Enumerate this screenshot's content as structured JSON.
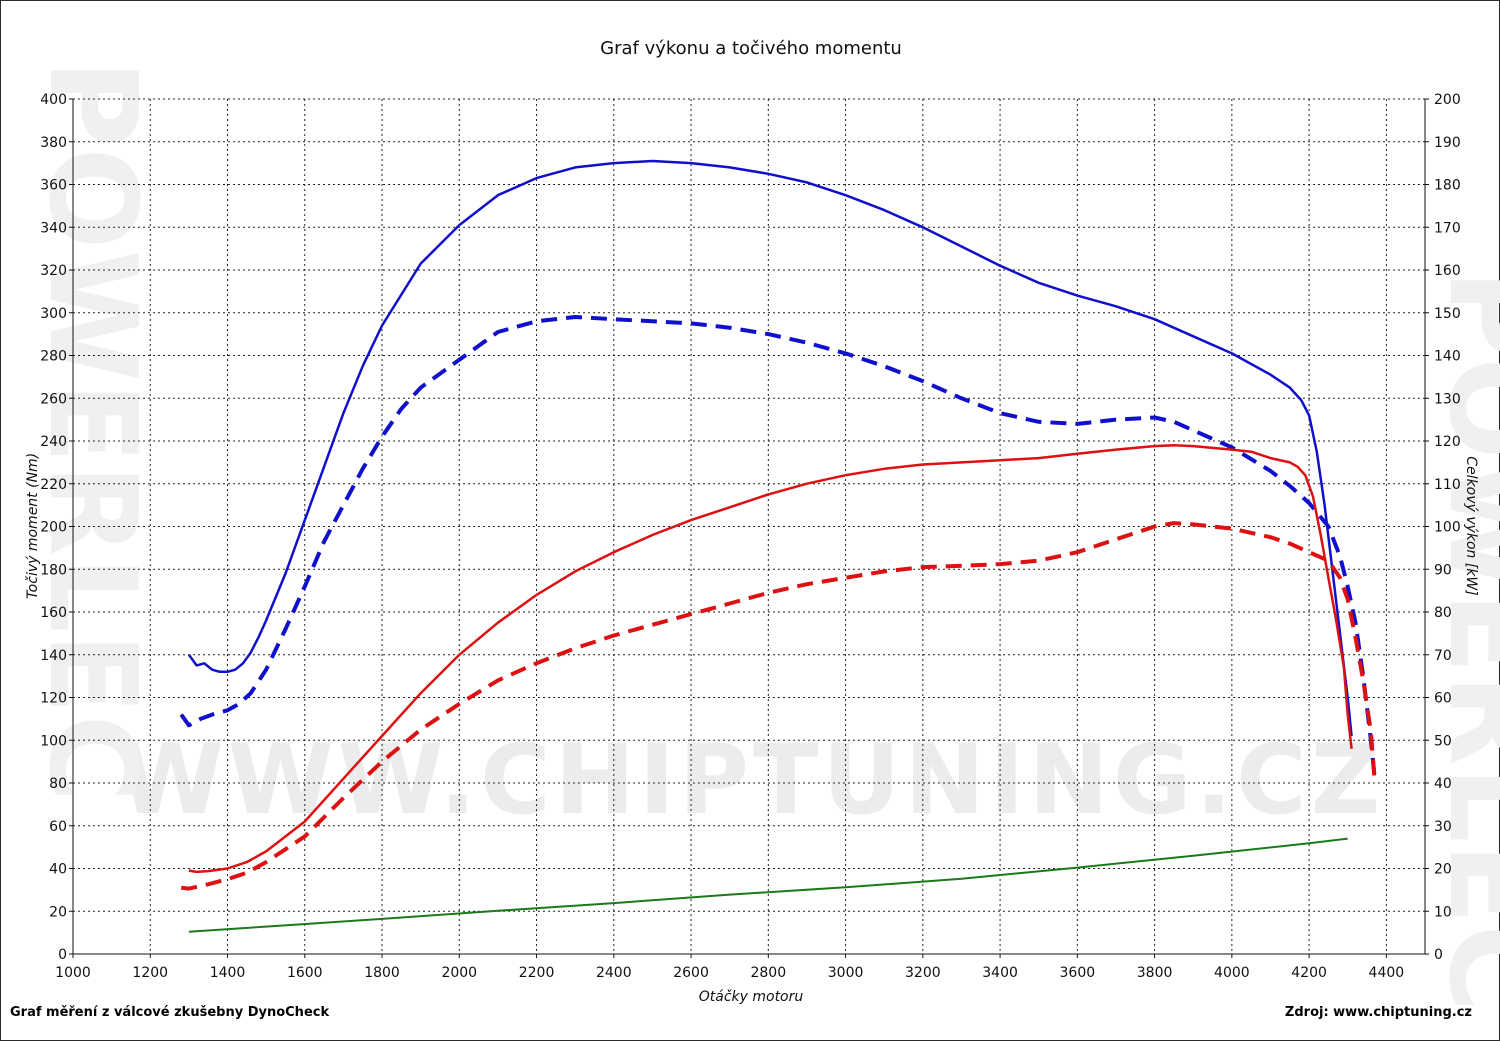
{
  "footer": {
    "left": "Graf měření z válcové zkušebny DynoCheck",
    "right": "Zdroj: www.chiptuning.cz"
  },
  "watermark": {
    "text": "WWW.CHIPTUNING.CZ",
    "side_text": "POWERLEC"
  },
  "chart_data": {
    "type": "line",
    "title": "Graf výkonu a točivého momentu",
    "xlabel": "Otáčky motoru",
    "ylabel_left": "Točivý moment (Nm)",
    "ylabel_right": "Celkový výkon [kW]",
    "xlim": [
      1000,
      4500
    ],
    "ylim_left": [
      0,
      400
    ],
    "ylim_right": [
      0,
      200
    ],
    "x_ticks": [
      1000,
      1200,
      1400,
      1600,
      1800,
      2000,
      2200,
      2400,
      2600,
      2800,
      3000,
      3200,
      3400,
      3600,
      3800,
      4000,
      4200,
      4400
    ],
    "y_ticks_left": [
      0,
      20,
      40,
      60,
      80,
      100,
      120,
      140,
      160,
      180,
      200,
      220,
      240,
      260,
      280,
      300,
      320,
      340,
      360,
      380,
      400
    ],
    "y_ticks_right": [
      0,
      10,
      20,
      30,
      40,
      50,
      60,
      70,
      80,
      90,
      100,
      110,
      120,
      130,
      140,
      150,
      160,
      170,
      180,
      190,
      200
    ],
    "grid": true,
    "legend": "none",
    "colors": {
      "torque": "#1010cc",
      "power": "#dd1111",
      "loss": "#1a7a1a",
      "grid": "#222222"
    },
    "series": [
      {
        "axis": "left",
        "style": "solid",
        "color": "#1010cc",
        "x": [
          1300,
          1320,
          1340,
          1360,
          1380,
          1400,
          1420,
          1440,
          1460,
          1480,
          1500,
          1550,
          1600,
          1650,
          1700,
          1750,
          1800,
          1900,
          2000,
          2100,
          2200,
          2300,
          2400,
          2500,
          2600,
          2700,
          2800,
          2900,
          3000,
          3100,
          3200,
          3300,
          3400,
          3500,
          3600,
          3700,
          3800,
          3900,
          4000,
          4100,
          4150,
          4180,
          4200,
          4220,
          4240,
          4260,
          4280,
          4300,
          4310
        ],
        "y": [
          140,
          135,
          136,
          133,
          132,
          132,
          133,
          136,
          141,
          148,
          156,
          178,
          203,
          228,
          253,
          275,
          294,
          323,
          341,
          355,
          363,
          368,
          370,
          371,
          370,
          368,
          365,
          361,
          355,
          348,
          340,
          331,
          322,
          314,
          308,
          303,
          297,
          289,
          281,
          271,
          265,
          259,
          252,
          235,
          210,
          180,
          150,
          120,
          102
        ]
      },
      {
        "axis": "left",
        "style": "dashed",
        "color": "#1010cc",
        "x": [
          1280,
          1300,
          1330,
          1360,
          1400,
          1430,
          1460,
          1500,
          1550,
          1600,
          1650,
          1700,
          1750,
          1800,
          1850,
          1900,
          2000,
          2100,
          2200,
          2300,
          2400,
          2500,
          2600,
          2700,
          2800,
          2900,
          3000,
          3100,
          3200,
          3300,
          3400,
          3500,
          3600,
          3650,
          3700,
          3800,
          3850,
          3900,
          4000,
          4100,
          4150,
          4200,
          4250,
          4280,
          4300,
          4320,
          4340,
          4360,
          4370
        ],
        "y": [
          112,
          107,
          110,
          112,
          114,
          117,
          122,
          133,
          152,
          172,
          193,
          210,
          227,
          242,
          255,
          265,
          278,
          291,
          296,
          298,
          297,
          296,
          295,
          293,
          290,
          286,
          281,
          275,
          268,
          260,
          253,
          249,
          248,
          249,
          250,
          251,
          249,
          245,
          237,
          226,
          219,
          211,
          200,
          186,
          172,
          155,
          130,
          100,
          82
        ]
      },
      {
        "axis": "right",
        "style": "solid",
        "color": "#dd1111",
        "x": [
          1300,
          1320,
          1350,
          1400,
          1450,
          1500,
          1600,
          1700,
          1800,
          1900,
          2000,
          2100,
          2200,
          2300,
          2400,
          2500,
          2600,
          2700,
          2800,
          2900,
          3000,
          3100,
          3200,
          3300,
          3400,
          3500,
          3600,
          3700,
          3800,
          3850,
          3900,
          4000,
          4050,
          4100,
          4150,
          4170,
          4190,
          4210,
          4230,
          4250,
          4270,
          4290,
          4300,
          4310
        ],
        "y": [
          19.5,
          19.2,
          19.4,
          20,
          21.5,
          24,
          31,
          41,
          51,
          61,
          70,
          77.5,
          84,
          89.5,
          94,
          98,
          101.5,
          104.5,
          107.5,
          110,
          112,
          113.5,
          114.5,
          115,
          115.5,
          116,
          117,
          118,
          118.8,
          119,
          118.8,
          118,
          117.5,
          116,
          115,
          114,
          112,
          107,
          98,
          88,
          78,
          67,
          56,
          48
        ]
      },
      {
        "axis": "right",
        "style": "dashed",
        "color": "#dd1111",
        "x": [
          1280,
          1300,
          1350,
          1400,
          1450,
          1500,
          1600,
          1700,
          1800,
          1900,
          2000,
          2100,
          2200,
          2300,
          2400,
          2500,
          2600,
          2700,
          2800,
          2900,
          3000,
          3100,
          3200,
          3300,
          3400,
          3500,
          3600,
          3700,
          3800,
          3850,
          3900,
          4000,
          4100,
          4150,
          4200,
          4250,
          4280,
          4300,
          4320,
          4340,
          4360,
          4370
        ],
        "y": [
          15.5,
          15.3,
          16.3,
          17.5,
          19,
          21.5,
          27.5,
          36.5,
          45,
          52.5,
          58.5,
          64,
          68,
          71.5,
          74.5,
          77,
          79.5,
          82,
          84.5,
          86.5,
          88,
          89.5,
          90.5,
          90.8,
          91.2,
          92,
          94,
          97,
          100,
          100.8,
          100.5,
          99.5,
          97.5,
          96,
          94,
          92,
          88,
          83,
          74,
          64,
          52,
          40
        ]
      },
      {
        "axis": "right",
        "style": "solid",
        "color": "#1a7a1a",
        "x": [
          1300,
          1500,
          1800,
          2100,
          2400,
          2700,
          3000,
          3300,
          3600,
          3900,
          4200,
          4300
        ],
        "y": [
          5.2,
          6.4,
          8.2,
          10.1,
          11.9,
          13.9,
          15.6,
          17.6,
          20.2,
          23,
          25.9,
          27
        ]
      }
    ]
  }
}
